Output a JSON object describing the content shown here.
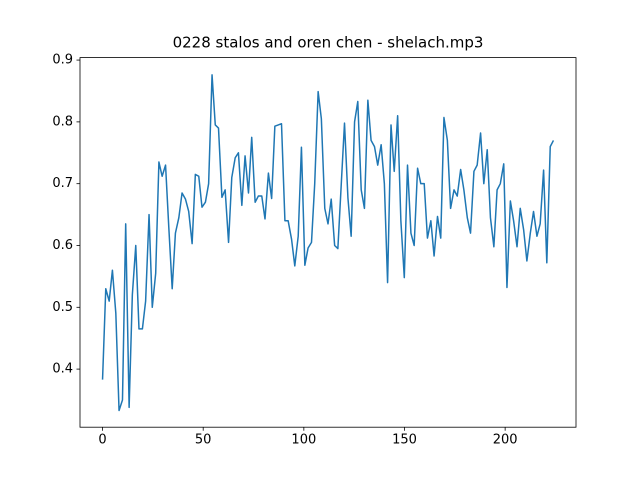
{
  "chart_data": {
    "type": "line",
    "title": "0228 stalos and oren chen - shelach.mp3",
    "x": [
      0,
      1.6,
      3.3,
      4.9,
      6.6,
      8.2,
      9.9,
      11.5,
      13.2,
      14.8,
      16.5,
      18.1,
      19.8,
      21.4,
      23.1,
      24.7,
      26.4,
      28,
      29.6,
      31.3,
      32.9,
      34.6,
      36.2,
      37.9,
      39.5,
      41.2,
      42.8,
      44.5,
      46.1,
      47.8,
      49.4,
      51.1,
      52.7,
      54.4,
      56,
      57.6,
      59.3,
      60.9,
      62.6,
      64.2,
      65.9,
      67.5,
      69.2,
      70.8,
      72.5,
      74.1,
      75.8,
      77.4,
      79.1,
      80.7,
      82.4,
      84,
      85.6,
      87.3,
      88.9,
      90.6,
      92.2,
      93.9,
      95.5,
      97.2,
      98.8,
      100.5,
      102.1,
      103.8,
      105.4,
      107.1,
      108.7,
      110.4,
      112,
      113.6,
      115.3,
      116.9,
      118.6,
      120.2,
      121.9,
      123.5,
      125.2,
      126.8,
      128.5,
      130.1,
      131.8,
      133.4,
      135.1,
      136.7,
      138.4,
      140,
      141.6,
      143.3,
      144.9,
      146.6,
      148.2,
      149.9,
      151.5,
      153.2,
      154.8,
      156.5,
      158.1,
      159.8,
      161.4,
      163.1,
      164.7,
      166.4,
      168,
      169.6,
      171.3,
      172.9,
      174.6,
      176.2,
      177.9,
      179.5,
      181.2,
      182.8,
      184.5,
      186.1,
      187.8,
      189.4,
      191.1,
      192.7,
      194.4,
      196,
      197.6,
      199.3,
      200.9,
      202.6,
      204.2,
      205.9,
      207.5,
      209.2,
      210.8,
      212.5,
      214.1,
      215.8,
      217.4,
      219.1,
      220.7,
      222.4,
      224
    ],
    "series": [
      {
        "color": "#1f77b4",
        "values": [
          0.383,
          0.53,
          0.51,
          0.56,
          0.49,
          0.333,
          0.35,
          0.635,
          0.338,
          0.52,
          0.6,
          0.465,
          0.465,
          0.51,
          0.65,
          0.5,
          0.555,
          0.735,
          0.712,
          0.73,
          0.63,
          0.53,
          0.62,
          0.645,
          0.685,
          0.675,
          0.655,
          0.603,
          0.715,
          0.712,
          0.662,
          0.67,
          0.7,
          0.876,
          0.795,
          0.79,
          0.678,
          0.69,
          0.605,
          0.71,
          0.742,
          0.75,
          0.665,
          0.745,
          0.685,
          0.775,
          0.67,
          0.68,
          0.68,
          0.643,
          0.717,
          0.676,
          0.793,
          0.795,
          0.797,
          0.64,
          0.64,
          0.61,
          0.567,
          0.615,
          0.759,
          0.568,
          0.596,
          0.605,
          0.7,
          0.849,
          0.805,
          0.66,
          0.635,
          0.675,
          0.6,
          0.595,
          0.7,
          0.798,
          0.677,
          0.615,
          0.8,
          0.833,
          0.69,
          0.66,
          0.835,
          0.77,
          0.76,
          0.73,
          0.763,
          0.7,
          0.54,
          0.795,
          0.72,
          0.81,
          0.64,
          0.548,
          0.73,
          0.62,
          0.6,
          0.725,
          0.7,
          0.7,
          0.612,
          0.64,
          0.583,
          0.647,
          0.612,
          0.807,
          0.77,
          0.66,
          0.69,
          0.68,
          0.723,
          0.69,
          0.645,
          0.62,
          0.72,
          0.73,
          0.782,
          0.7,
          0.755,
          0.645,
          0.598,
          0.69,
          0.7,
          0.732,
          0.532,
          0.672,
          0.64,
          0.598,
          0.66,
          0.625,
          0.575,
          0.62,
          0.655,
          0.615,
          0.635,
          0.722,
          0.572,
          0.76,
          0.77
        ]
      }
    ],
    "xlim": [
      -11.2,
      235.2
    ],
    "xticks": [
      0,
      50,
      100,
      150,
      200
    ],
    "ylim": [
      0.306,
      0.904
    ],
    "yticks": [
      0.4,
      0.5,
      0.6,
      0.7,
      0.8,
      0.9
    ]
  }
}
